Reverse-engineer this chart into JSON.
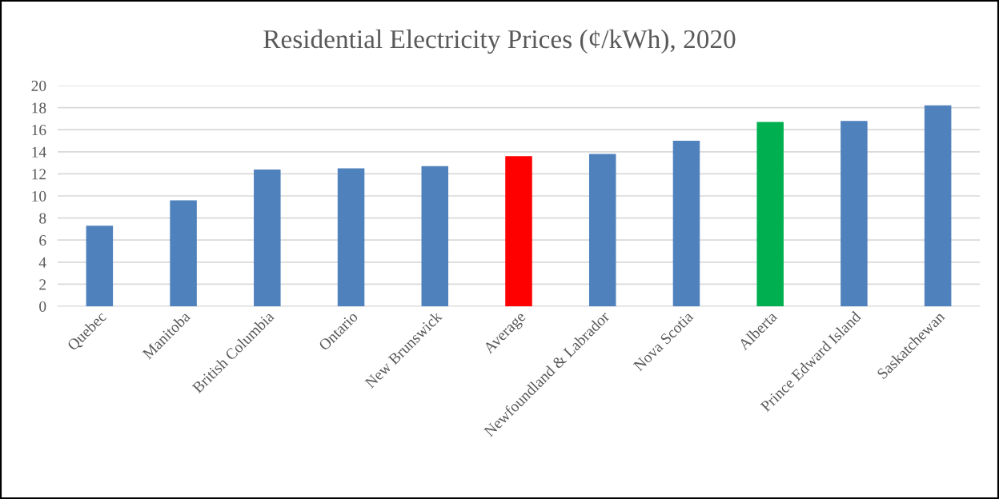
{
  "chart_data": {
    "type": "bar",
    "title": "Residential Electricity Prices (¢/kWh), 2020",
    "categories": [
      "Quebec",
      "Manitoba",
      "British Columbia",
      "Ontario",
      "New Brunswick",
      "Average",
      "Newfoundland & Labrador",
      "Nova Scotia",
      "Alberta",
      "Prince Edward Island",
      "Saskatchewan"
    ],
    "values": [
      7.3,
      9.6,
      12.4,
      12.5,
      12.7,
      13.6,
      13.8,
      15.0,
      16.7,
      16.8,
      18.2
    ],
    "colors": [
      "#4f81bd",
      "#4f81bd",
      "#4f81bd",
      "#4f81bd",
      "#4f81bd",
      "#ff0000",
      "#4f81bd",
      "#4f81bd",
      "#00b050",
      "#4f81bd",
      "#4f81bd"
    ],
    "ylim": [
      0,
      20
    ],
    "yticks": [
      0,
      2,
      4,
      6,
      8,
      10,
      12,
      14,
      16,
      18,
      20
    ],
    "grid": "y"
  }
}
